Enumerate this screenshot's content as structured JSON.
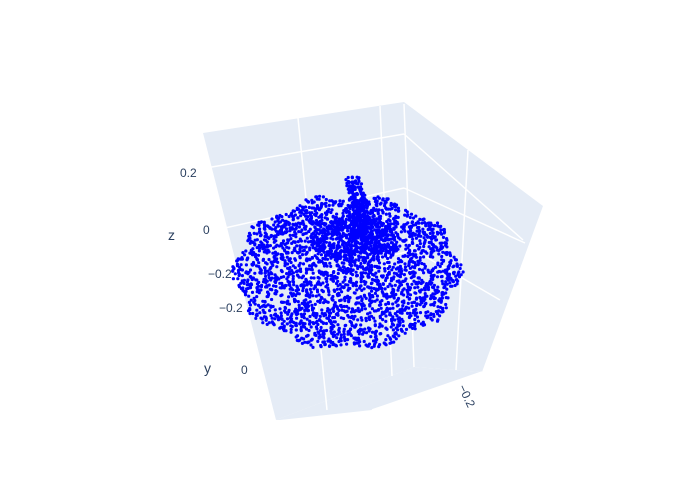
{
  "chart_data": {
    "type": "scatter",
    "subtype": "scatter3d",
    "title": "",
    "marker_color": "#0000ff",
    "background_color": "#e5ecf6",
    "grid_color": "#ffffff",
    "text_color": "#2a3f5f",
    "shape_description_points": "3D pumpkin-shaped point cloud: squashed ribbed sphere with a curved stem on top",
    "axes": {
      "x": {
        "title": "",
        "ticks": [
          "−0.2"
        ]
      },
      "y": {
        "title": "y",
        "ticks": [
          "−0.2",
          "0"
        ]
      },
      "z": {
        "title": "z",
        "ticks": [
          "−0.2",
          "0",
          "0.2"
        ]
      }
    },
    "grid": true,
    "legend": "none"
  }
}
